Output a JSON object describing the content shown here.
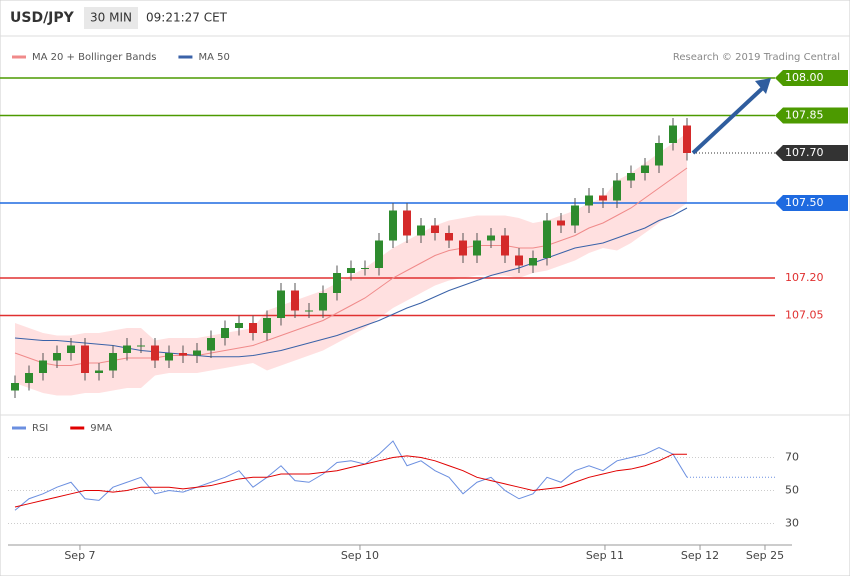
{
  "header": {
    "symbol": "USD/JPY",
    "interval": "30 MIN",
    "time": "09:21:27 CET",
    "credit": "Research © 2019 Trading Central"
  },
  "chart_data": [
    {
      "type": "candlestick",
      "up_color": "#2e8b2e",
      "down_color": "#d42a2a",
      "xlim": [
        -0.5,
        55.5
      ],
      "ylim": [
        106.68,
        108.15
      ],
      "open": [
        106.75,
        106.78,
        106.82,
        106.87,
        106.9,
        106.93,
        106.82,
        106.83,
        106.9,
        106.93,
        106.93,
        106.87,
        106.9,
        106.89,
        106.91,
        106.96,
        107.0,
        107.02,
        106.98,
        107.04,
        107.15,
        107.07,
        107.07,
        107.14,
        107.22,
        107.24,
        107.24,
        107.35,
        107.47,
        107.37,
        107.41,
        107.38,
        107.35,
        107.29,
        107.35,
        107.37,
        107.29,
        107.25,
        107.28,
        107.43,
        107.41,
        107.49,
        107.53,
        107.51,
        107.59,
        107.62,
        107.65,
        107.74,
        107.81
      ],
      "high": [
        106.81,
        106.85,
        106.9,
        106.93,
        106.96,
        106.96,
        106.86,
        106.93,
        106.96,
        106.96,
        106.96,
        106.93,
        106.93,
        106.94,
        106.99,
        107.03,
        107.05,
        107.05,
        107.07,
        107.18,
        107.18,
        107.1,
        107.17,
        107.25,
        107.27,
        107.27,
        107.38,
        107.5,
        107.5,
        107.44,
        107.44,
        107.41,
        107.38,
        107.38,
        107.4,
        107.4,
        107.32,
        107.31,
        107.46,
        107.46,
        107.52,
        107.56,
        107.56,
        107.62,
        107.65,
        107.68,
        107.77,
        107.84,
        107.84
      ],
      "low": [
        106.72,
        106.75,
        106.79,
        106.84,
        106.87,
        106.79,
        106.79,
        106.8,
        106.87,
        106.9,
        106.84,
        106.84,
        106.86,
        106.86,
        106.88,
        106.93,
        106.97,
        106.95,
        106.95,
        107.01,
        107.04,
        107.04,
        107.04,
        107.11,
        107.19,
        107.21,
        107.21,
        107.32,
        107.34,
        107.34,
        107.35,
        107.32,
        107.26,
        107.26,
        107.32,
        107.26,
        107.22,
        107.22,
        107.25,
        107.38,
        107.38,
        107.46,
        107.48,
        107.48,
        107.56,
        107.59,
        107.62,
        107.71,
        107.67
      ],
      "close": [
        106.78,
        106.82,
        106.87,
        106.9,
        106.93,
        106.82,
        106.83,
        106.9,
        106.93,
        106.93,
        106.87,
        106.9,
        106.89,
        106.91,
        106.96,
        107.0,
        107.02,
        106.98,
        107.04,
        107.15,
        107.07,
        107.07,
        107.14,
        107.22,
        107.24,
        107.24,
        107.35,
        107.47,
        107.37,
        107.41,
        107.38,
        107.35,
        107.29,
        107.35,
        107.37,
        107.29,
        107.25,
        107.28,
        107.43,
        107.41,
        107.49,
        107.53,
        107.51,
        107.59,
        107.62,
        107.65,
        107.74,
        107.81,
        107.7
      ],
      "series": [
        {
          "name": "MA 20 + Bollinger Bands",
          "color": "#f08a8a",
          "band_color": "#ffe0e0",
          "values": [
            106.9,
            106.88,
            106.86,
            106.85,
            106.85,
            106.86,
            106.86,
            106.87,
            106.88,
            106.88,
            106.88,
            106.89,
            106.89,
            106.89,
            106.9,
            106.91,
            106.92,
            106.93,
            106.95,
            106.97,
            106.99,
            107.01,
            107.03,
            107.06,
            107.09,
            107.12,
            107.16,
            107.2,
            107.23,
            107.26,
            107.29,
            107.31,
            107.32,
            107.33,
            107.33,
            107.33,
            107.32,
            107.32,
            107.33,
            107.35,
            107.37,
            107.4,
            107.42,
            107.45,
            107.48,
            107.52,
            107.56,
            107.6,
            107.64
          ],
          "upper": [
            107.02,
            107.0,
            106.98,
            106.97,
            106.97,
            106.98,
            106.98,
            106.99,
            107.0,
            107.0,
            106.95,
            106.96,
            106.96,
            106.96,
            106.97,
            106.98,
            106.99,
            107.0,
            107.07,
            107.09,
            107.11,
            107.13,
            107.15,
            107.18,
            107.21,
            107.24,
            107.28,
            107.32,
            107.35,
            107.38,
            107.41,
            107.43,
            107.44,
            107.45,
            107.45,
            107.45,
            107.44,
            107.42,
            107.43,
            107.45,
            107.47,
            107.5,
            107.52,
            107.59,
            107.62,
            107.66,
            107.7,
            107.74,
            107.78
          ],
          "lower": [
            106.78,
            106.76,
            106.74,
            106.73,
            106.73,
            106.74,
            106.74,
            106.75,
            106.76,
            106.76,
            106.81,
            106.82,
            106.82,
            106.82,
            106.83,
            106.84,
            106.85,
            106.86,
            106.83,
            106.85,
            106.87,
            106.89,
            106.91,
            106.94,
            106.97,
            107.0,
            107.04,
            107.08,
            107.11,
            107.14,
            107.17,
            107.19,
            107.2,
            107.21,
            107.21,
            107.21,
            107.2,
            107.22,
            107.23,
            107.25,
            107.27,
            107.3,
            107.32,
            107.31,
            107.34,
            107.38,
            107.42,
            107.46,
            107.5
          ]
        },
        {
          "name": "MA 50",
          "color": "#3a62a8",
          "values": [
            106.96,
            106.955,
            106.95,
            106.95,
            106.945,
            106.94,
            106.935,
            106.93,
            106.92,
            106.91,
            106.905,
            106.9,
            106.895,
            106.89,
            106.885,
            106.885,
            106.885,
            106.89,
            106.9,
            106.91,
            106.925,
            106.94,
            106.955,
            106.97,
            106.99,
            107.01,
            107.03,
            107.055,
            107.08,
            107.1,
            107.125,
            107.15,
            107.17,
            107.19,
            107.21,
            107.225,
            107.24,
            107.26,
            107.28,
            107.3,
            107.32,
            107.33,
            107.34,
            107.36,
            107.38,
            107.4,
            107.43,
            107.45,
            107.48
          ]
        }
      ],
      "levels": [
        {
          "value": 108.0,
          "label": "108.00",
          "color": "#4c9a00",
          "box": true,
          "dashed": false
        },
        {
          "value": 107.85,
          "label": "107.85",
          "color": "#4c9a00",
          "box": true,
          "dashed": false
        },
        {
          "value": 107.7,
          "label": "107.70",
          "color": "#333333",
          "box": true,
          "dashed": true
        },
        {
          "value": 107.5,
          "label": "107.50",
          "color": "#1e6ae0",
          "box": true,
          "dashed": false
        },
        {
          "value": 107.2,
          "label": "107.20",
          "color": "#e03030",
          "box": false,
          "dashed": false
        },
        {
          "value": 107.05,
          "label": "107.05",
          "color": "#e03030",
          "box": false,
          "dashed": false
        }
      ]
    },
    {
      "type": "line",
      "xlim": [
        -0.5,
        55.5
      ],
      "ylim": [
        20,
        80
      ],
      "yticks": [
        70,
        50,
        30
      ],
      "xticks": [
        {
          "value": 4.64,
          "label": "Sep 7"
        },
        {
          "value": 24.64,
          "label": "Sep 10"
        },
        {
          "value": 42.14,
          "label": "Sep 11"
        },
        {
          "value": 48.93,
          "label": "Sep 12"
        },
        {
          "value": 53.57,
          "label": "Sep 25"
        }
      ],
      "series": [
        {
          "name": "RSI",
          "color": "#6b8fe0",
          "values": [
            38,
            45,
            48,
            52,
            55,
            45,
            44,
            52,
            55,
            58,
            48,
            50,
            49,
            52,
            55,
            58,
            62,
            52,
            58,
            65,
            56,
            55,
            60,
            67,
            68,
            66,
            72,
            80,
            65,
            68,
            62,
            58,
            48,
            55,
            58,
            50,
            45,
            48,
            58,
            55,
            62,
            65,
            62,
            68,
            70,
            72,
            76,
            72,
            58
          ]
        },
        {
          "name": "9MA",
          "color": "#e00000",
          "values": [
            40,
            42,
            44,
            46,
            48,
            50,
            50,
            49,
            50,
            52,
            52,
            52,
            51,
            52,
            53,
            55,
            57,
            58,
            58,
            60,
            60,
            60,
            61,
            62,
            64,
            66,
            68,
            70,
            71,
            70,
            68,
            65,
            62,
            58,
            56,
            54,
            52,
            50,
            51,
            52,
            55,
            58,
            60,
            62,
            63,
            65,
            68,
            72,
            72
          ]
        }
      ]
    }
  ]
}
